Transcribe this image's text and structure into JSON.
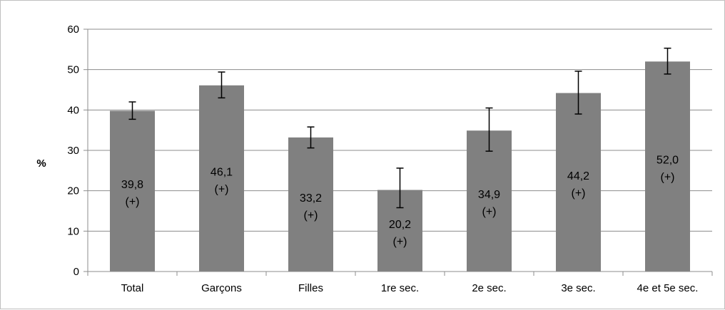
{
  "chart_data": {
    "type": "bar",
    "title": "",
    "xlabel": "",
    "ylabel": "%",
    "ylim": [
      0,
      60
    ],
    "yticks": [
      0,
      10,
      20,
      30,
      40,
      50,
      60
    ],
    "grid": true,
    "legend": "none",
    "categories": [
      "Total",
      "Garçons",
      "Filles",
      "1re sec.",
      "2e sec.",
      "3e sec.",
      "4e et 5e sec."
    ],
    "values": [
      39.8,
      46.1,
      33.2,
      20.2,
      34.9,
      44.2,
      52.0
    ],
    "error_low": [
      37.7,
      43.0,
      30.6,
      15.8,
      29.8,
      39.0,
      48.9
    ],
    "error_high": [
      42.0,
      49.4,
      35.8,
      25.6,
      40.5,
      49.6,
      55.3
    ],
    "labels": [
      {
        "value": "39,8",
        "flag": "(+)"
      },
      {
        "value": "46,1",
        "flag": "(+)"
      },
      {
        "value": "33,2",
        "flag": "(+)"
      },
      {
        "value": "20,2",
        "flag": "(+)"
      },
      {
        "value": "34,9",
        "flag": "(+)"
      },
      {
        "value": "44,2",
        "flag": "(+)"
      },
      {
        "value": "52,0",
        "flag": "(+)"
      }
    ],
    "colors": {
      "bar": "#808080",
      "grid": "#8c8c8c",
      "axis": "#8c8c8c",
      "error_bar": "#000000"
    }
  }
}
